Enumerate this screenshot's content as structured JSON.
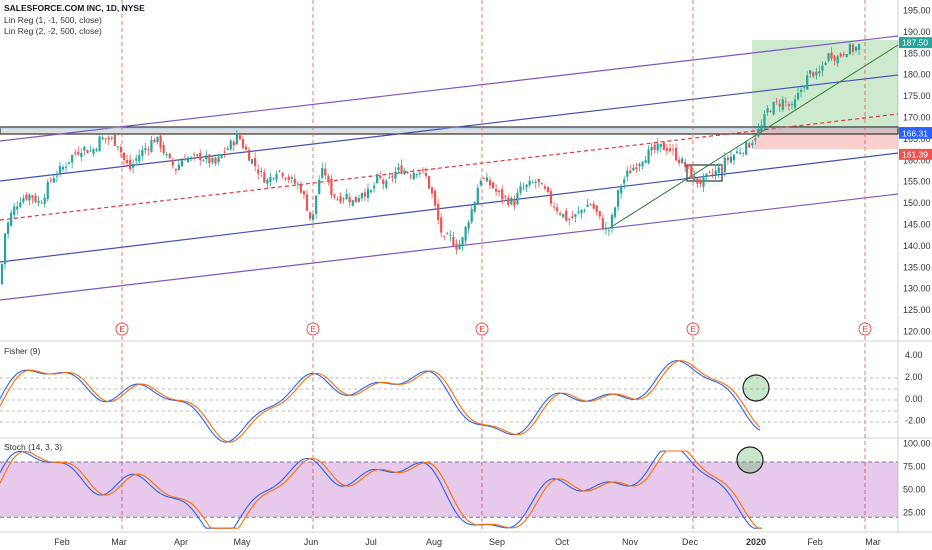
{
  "chart_data": [
    {
      "type": "candlestick",
      "panel": "price",
      "legend": [
        "SALESFORCE.COM INC, 1D, NYSE",
        "Lin Reg (1, -1, 500, close)",
        "Lin Reg (2, -2, 500, close)"
      ],
      "y_ticks": [
        120,
        125,
        130,
        135,
        140,
        145,
        150,
        155,
        160,
        165,
        170,
        175,
        180,
        185,
        190,
        195
      ],
      "ylim": [
        118,
        197
      ],
      "x_ticks": [
        "Feb",
        "Mar",
        "Apr",
        "May",
        "Jun",
        "Jul",
        "Aug",
        "Sep",
        "Oct",
        "Nov",
        "Dec",
        "2020",
        "Feb",
        "Mar"
      ],
      "price_tags": [
        {
          "value": "187.50",
          "color": "#26a69a"
        },
        {
          "value": "166.46",
          "color": "#434651"
        },
        {
          "value": "166.31",
          "color": "#2962ff"
        },
        {
          "value": "161.39",
          "color": "#ef5350"
        }
      ],
      "earnings_label": "E",
      "close_path": [
        [
          0,
          131
        ],
        [
          5,
          143
        ],
        [
          12,
          148
        ],
        [
          20,
          151
        ],
        [
          30,
          152
        ],
        [
          40,
          150
        ],
        [
          52,
          156
        ],
        [
          62,
          158
        ],
        [
          72,
          161
        ],
        [
          82,
          163
        ],
        [
          92,
          162
        ],
        [
          100,
          165
        ],
        [
          110,
          165
        ],
        [
          118,
          164
        ],
        [
          124,
          160
        ],
        [
          130,
          158
        ],
        [
          138,
          161
        ],
        [
          146,
          163
        ],
        [
          154,
          165
        ],
        [
          160,
          164
        ],
        [
          168,
          160
        ],
        [
          176,
          158
        ],
        [
          184,
          161
        ],
        [
          192,
          160
        ],
        [
          200,
          161
        ],
        [
          208,
          160
        ],
        [
          216,
          159
        ],
        [
          224,
          162
        ],
        [
          232,
          164
        ],
        [
          238,
          166
        ],
        [
          244,
          163
        ],
        [
          252,
          160
        ],
        [
          260,
          157
        ],
        [
          268,
          155
        ],
        [
          276,
          158
        ],
        [
          284,
          157
        ],
        [
          292,
          155
        ],
        [
          300,
          154
        ],
        [
          306,
          150
        ],
        [
          312,
          145
        ],
        [
          318,
          155
        ],
        [
          324,
          158
        ],
        [
          330,
          153
        ],
        [
          338,
          151
        ],
        [
          346,
          152
        ],
        [
          354,
          150
        ],
        [
          362,
          153
        ],
        [
          370,
          152
        ],
        [
          378,
          156
        ],
        [
          386,
          154
        ],
        [
          394,
          157
        ],
        [
          402,
          158
        ],
        [
          410,
          157
        ],
        [
          418,
          158
        ],
        [
          426,
          156
        ],
        [
          432,
          152
        ],
        [
          438,
          146
        ],
        [
          444,
          141
        ],
        [
          450,
          142
        ],
        [
          456,
          140
        ],
        [
          462,
          141
        ],
        [
          468,
          146
        ],
        [
          474,
          150
        ],
        [
          480,
          156
        ],
        [
          486,
          155
        ],
        [
          492,
          154
        ],
        [
          498,
          152
        ],
        [
          506,
          151
        ],
        [
          514,
          150
        ],
        [
          520,
          153
        ],
        [
          528,
          154
        ],
        [
          536,
          155
        ],
        [
          544,
          153
        ],
        [
          552,
          150
        ],
        [
          560,
          148
        ],
        [
          568,
          146
        ],
        [
          576,
          147
        ],
        [
          584,
          149
        ],
        [
          590,
          150
        ],
        [
          596,
          148
        ],
        [
          602,
          145
        ],
        [
          608,
          143
        ],
        [
          614,
          148
        ],
        [
          620,
          154
        ],
        [
          628,
          157
        ],
        [
          636,
          159
        ],
        [
          644,
          161
        ],
        [
          652,
          162
        ],
        [
          660,
          163
        ],
        [
          668,
          163
        ],
        [
          676,
          161
        ],
        [
          684,
          159
        ],
        [
          690,
          157
        ],
        [
          696,
          155
        ],
        [
          702,
          155
        ],
        [
          708,
          156
        ],
        [
          714,
          157
        ],
        [
          720,
          158
        ],
        [
          726,
          160
        ],
        [
          732,
          161
        ],
        [
          738,
          162
        ],
        [
          744,
          163
        ],
        [
          750,
          164
        ],
        [
          756,
          166
        ],
        [
          762,
          168
        ],
        [
          768,
          172
        ],
        [
          776,
          173
        ],
        [
          784,
          174
        ],
        [
          792,
          172
        ],
        [
          798,
          175
        ],
        [
          804,
          178
        ],
        [
          812,
          181
        ],
        [
          818,
          179
        ],
        [
          824,
          183
        ],
        [
          830,
          185
        ],
        [
          838,
          184
        ],
        [
          846,
          186
        ],
        [
          854,
          186
        ],
        [
          862,
          187
        ]
      ],
      "earnings_x": [
        122,
        313,
        482,
        693,
        865
      ]
    },
    {
      "type": "line",
      "panel": "fisher",
      "title": "Fisher (9)",
      "y_ticks": [
        "4.00",
        "2.00",
        "0.00",
        "-2.00"
      ],
      "tick_values": [
        4,
        2,
        0,
        -2
      ],
      "ylim": [
        -3.5,
        5.2
      ]
    },
    {
      "type": "line",
      "panel": "stoch",
      "title": "Stoch (14, 3, 3)",
      "y_ticks": [
        "100.00",
        "75.00",
        "50.00",
        "25.00"
      ],
      "tick_values": [
        100,
        75,
        50,
        25
      ],
      "ylim": [
        5,
        105
      ],
      "band": [
        20,
        80
      ]
    }
  ]
}
